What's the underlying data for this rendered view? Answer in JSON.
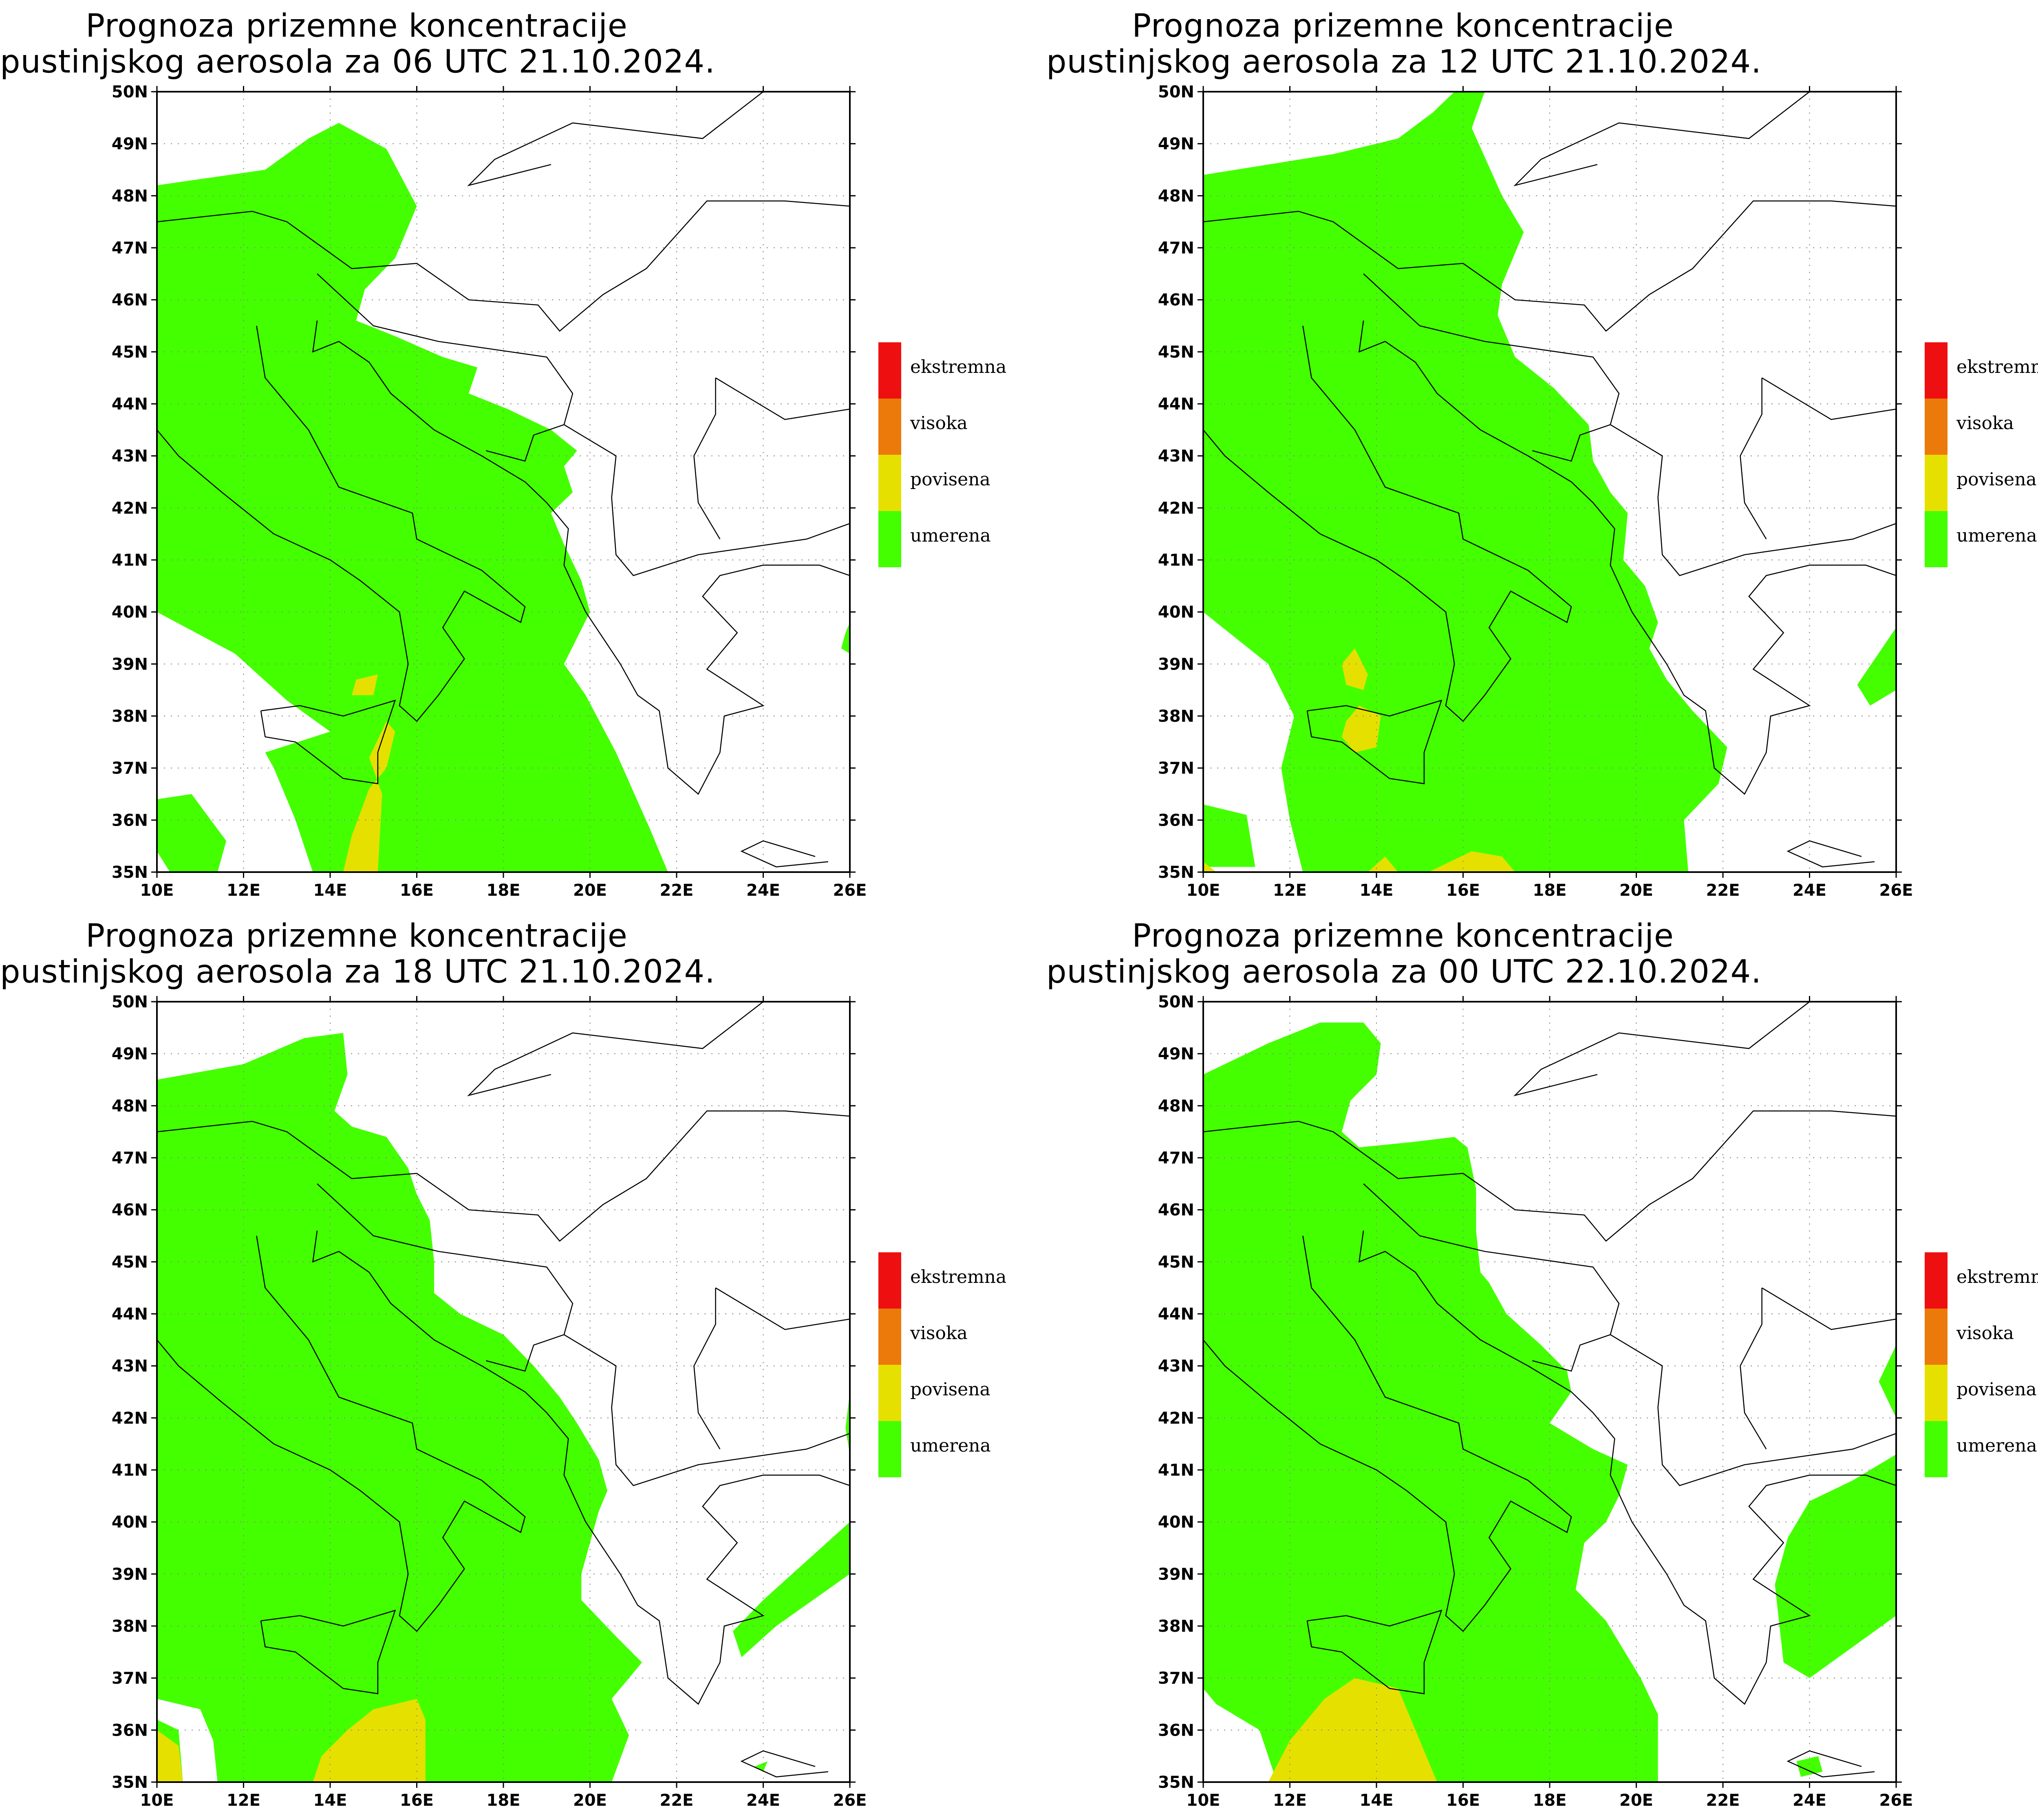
{
  "panels": [
    {
      "title_line1": "Prognoza prizemne koncentracije",
      "title_line2": "pustinjskog aerosola za 06 UTC 21.10.2024.",
      "variant": 0
    },
    {
      "title_line1": "Prognoza prizemne koncentracije",
      "title_line2": "pustinjskog aerosola za 12 UTC 21.10.2024.",
      "variant": 1
    },
    {
      "title_line1": "Prognoza prizemne koncentracije",
      "title_line2": "pustinjskog aerosola za 18 UTC 21.10.2024.",
      "variant": 2
    },
    {
      "title_line1": "Prognoza prizemne koncentracije",
      "title_line2": "pustinjskog aerosola za 00 UTC 22.10.2024.",
      "variant": 3
    }
  ],
  "axes": {
    "lat_labels": [
      "50N",
      "49N",
      "48N",
      "47N",
      "46N",
      "45N",
      "44N",
      "43N",
      "42N",
      "41N",
      "40N",
      "39N",
      "38N",
      "37N",
      "36N",
      "35N"
    ],
    "lon_labels": [
      "10E",
      "12E",
      "14E",
      "16E",
      "18E",
      "20E",
      "22E",
      "24E",
      "26E"
    ]
  },
  "legend": [
    {
      "label": "ekstremna",
      "color": "#ee1010"
    },
    {
      "label": "visoka",
      "color": "#ec7a0a"
    },
    {
      "label": "povisena",
      "color": "#e6e000"
    },
    {
      "label": "umerena",
      "color": "#44ff00"
    }
  ]
}
